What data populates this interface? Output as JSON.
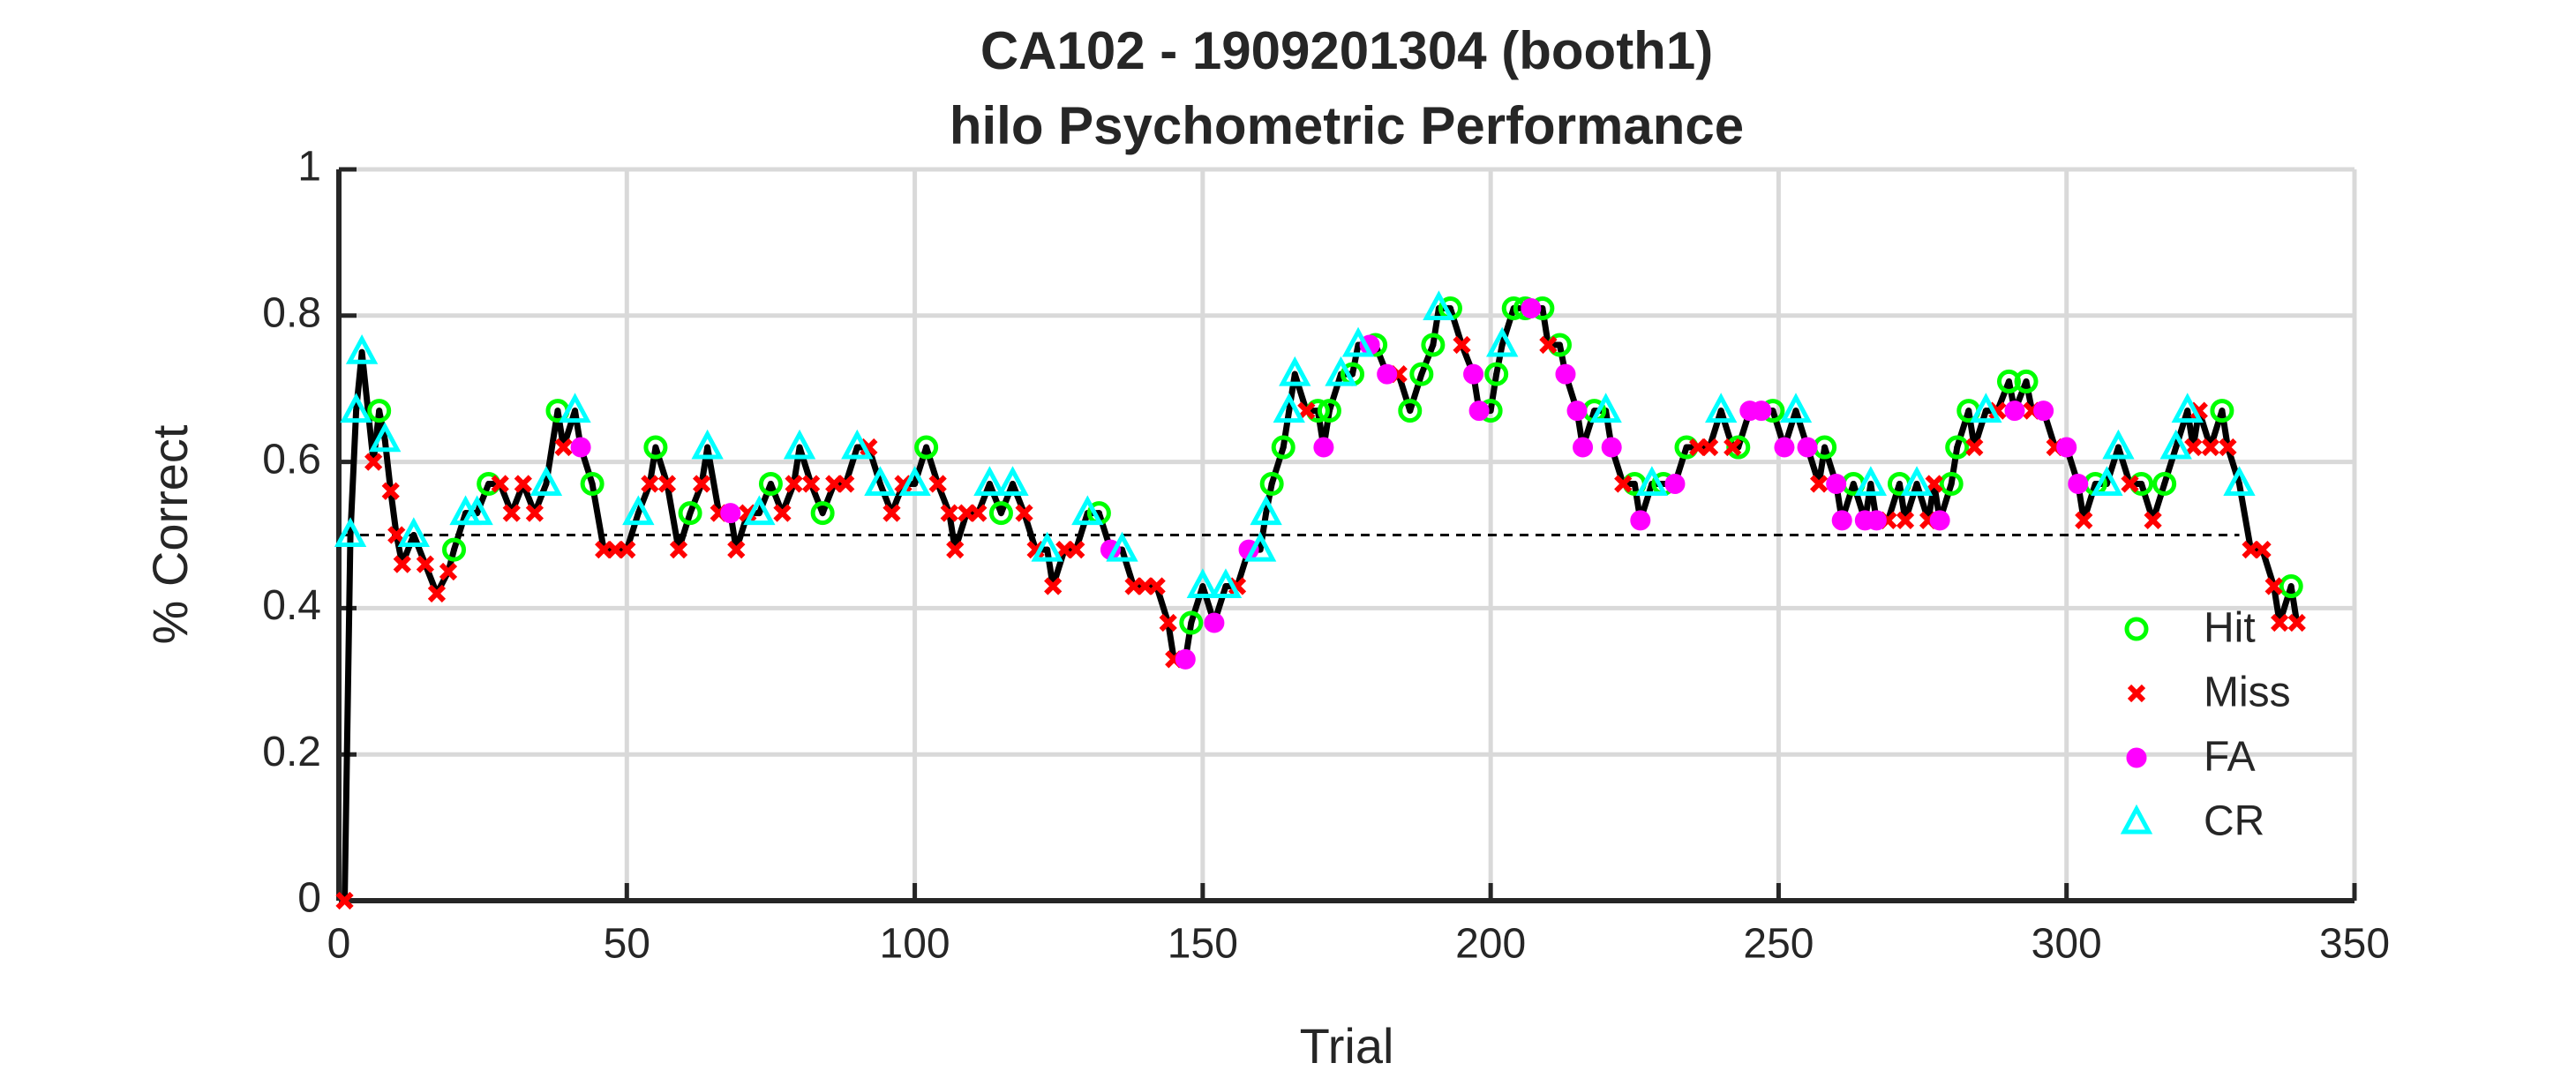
{
  "chart_data": {
    "type": "line",
    "title": "CA102 - 1909201304 (booth1)",
    "subtitle": "hilo Psychometric Performance",
    "x_label": "Trial",
    "y_label": "% Correct",
    "xlim": [
      0,
      350
    ],
    "xticks": [
      0,
      50,
      100,
      150,
      200,
      250,
      300,
      350
    ],
    "ylim": [
      0,
      1
    ],
    "yticks": [
      0,
      0.2,
      0.4,
      0.6,
      0.8,
      1
    ],
    "grid": true,
    "legend": "right",
    "line_color": "#000000",
    "reference_line": 0.5,
    "series": [
      {
        "name": "Hit",
        "color": "#00ff00",
        "marker": "circle",
        "x": [
          7,
          20,
          26,
          38,
          44,
          55,
          61,
          75,
          84,
          102,
          115,
          132,
          148,
          162,
          164,
          170,
          172,
          176,
          180,
          186,
          188,
          190,
          193,
          200,
          201,
          204,
          206,
          209,
          212,
          218,
          225,
          230,
          234,
          243,
          249,
          258,
          263,
          271,
          280,
          281,
          283,
          290,
          293,
          305,
          313,
          317,
          327,
          339
        ],
        "values": [
          0.67,
          0.48,
          0.57,
          0.67,
          0.57,
          0.62,
          0.53,
          0.57,
          0.53,
          0.62,
          0.53,
          0.53,
          0.38,
          0.57,
          0.62,
          0.67,
          0.67,
          0.72,
          0.76,
          0.67,
          0.72,
          0.76,
          0.81,
          0.67,
          0.72,
          0.81,
          0.81,
          0.81,
          0.76,
          0.67,
          0.57,
          0.57,
          0.62,
          0.62,
          0.67,
          0.62,
          0.57,
          0.57,
          0.57,
          0.62,
          0.67,
          0.71,
          0.71,
          0.57,
          0.57,
          0.57,
          0.67,
          0.43
        ]
      },
      {
        "name": "Miss",
        "color": "#ff0000",
        "marker": "cross",
        "x": [
          1,
          6,
          9,
          10,
          11,
          15,
          17,
          19,
          28,
          30,
          32,
          34,
          39,
          46,
          48,
          50,
          54,
          57,
          59,
          63,
          66,
          69,
          71,
          77,
          79,
          82,
          86,
          88,
          92,
          96,
          98,
          104,
          106,
          107,
          109,
          111,
          119,
          121,
          124,
          126,
          128,
          138,
          140,
          142,
          144,
          145,
          156,
          168,
          184,
          195,
          210,
          223,
          236,
          238,
          242,
          257,
          269,
          272,
          276,
          277,
          284,
          288,
          294,
          298,
          303,
          311,
          315,
          322,
          323,
          325,
          328,
          332,
          334,
          336,
          337,
          340
        ],
        "values": [
          0,
          0.6,
          0.56,
          0.5,
          0.46,
          0.46,
          0.42,
          0.45,
          0.57,
          0.53,
          0.57,
          0.53,
          0.62,
          0.48,
          0.48,
          0.48,
          0.57,
          0.57,
          0.48,
          0.57,
          0.53,
          0.48,
          0.53,
          0.53,
          0.57,
          0.57,
          0.57,
          0.57,
          0.62,
          0.53,
          0.57,
          0.57,
          0.53,
          0.48,
          0.53,
          0.53,
          0.53,
          0.48,
          0.43,
          0.48,
          0.48,
          0.43,
          0.43,
          0.43,
          0.38,
          0.33,
          0.43,
          0.67,
          0.72,
          0.76,
          0.76,
          0.57,
          0.62,
          0.62,
          0.62,
          0.57,
          0.52,
          0.52,
          0.52,
          0.57,
          0.62,
          0.67,
          0.67,
          0.62,
          0.52,
          0.57,
          0.52,
          0.62,
          0.67,
          0.62,
          0.62,
          0.48,
          0.48,
          0.43,
          0.38,
          0.38
        ]
      },
      {
        "name": "FA",
        "color": "#ff00ff",
        "marker": "dot",
        "x": [
          42,
          68,
          134,
          147,
          152,
          158,
          171,
          179,
          182,
          197,
          198,
          207,
          213,
          215,
          216,
          221,
          226,
          232,
          245,
          247,
          251,
          255,
          260,
          261,
          265,
          267,
          278,
          291,
          296,
          300,
          302
        ],
        "values": [
          0.62,
          0.53,
          0.48,
          0.33,
          0.38,
          0.48,
          0.62,
          0.76,
          0.72,
          0.72,
          0.67,
          0.81,
          0.72,
          0.67,
          0.62,
          0.62,
          0.52,
          0.57,
          0.67,
          0.67,
          0.62,
          0.62,
          0.57,
          0.52,
          0.52,
          0.52,
          0.52,
          0.67,
          0.67,
          0.62,
          0.57
        ]
      },
      {
        "name": "CR",
        "color": "#00ffff",
        "marker": "triangle",
        "x": [
          2,
          3,
          4,
          8,
          13,
          22,
          24,
          36,
          41,
          52,
          64,
          73,
          80,
          90,
          94,
          100,
          113,
          117,
          123,
          130,
          136,
          150,
          154,
          160,
          161,
          165,
          166,
          174,
          177,
          191,
          202,
          220,
          228,
          240,
          253,
          266,
          274,
          286,
          307,
          309,
          319,
          321,
          330
        ],
        "values": [
          0.5,
          0.67,
          0.75,
          0.63,
          0.5,
          0.53,
          0.53,
          0.57,
          0.67,
          0.53,
          0.62,
          0.53,
          0.62,
          0.62,
          0.57,
          0.57,
          0.57,
          0.57,
          0.48,
          0.53,
          0.48,
          0.43,
          0.43,
          0.48,
          0.53,
          0.67,
          0.72,
          0.72,
          0.76,
          0.81,
          0.76,
          0.67,
          0.57,
          0.67,
          0.67,
          0.57,
          0.57,
          0.67,
          0.57,
          0.62,
          0.62,
          0.67,
          0.57
        ]
      }
    ]
  }
}
